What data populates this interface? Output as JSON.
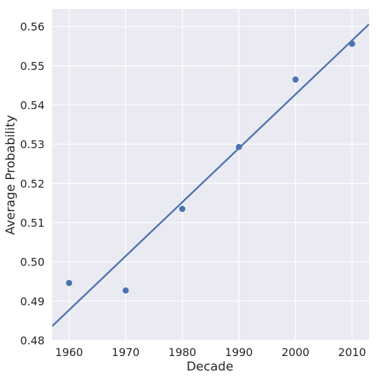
{
  "chart_data": {
    "type": "scatter",
    "title": "",
    "xlabel": "Decade",
    "ylabel": "Average Probability",
    "xlim": [
      1957,
      2013
    ],
    "ylim": [
      0.48,
      0.5645
    ],
    "xticks": [
      1960,
      1970,
      1980,
      1990,
      2000,
      2010
    ],
    "xtick_labels": [
      "1960",
      "1970",
      "1980",
      "1990",
      "2000",
      "2010"
    ],
    "yticks": [
      0.48,
      0.49,
      0.5,
      0.51,
      0.52,
      0.53,
      0.54,
      0.55,
      0.56
    ],
    "ytick_labels": [
      "0.48",
      "0.49",
      "0.50",
      "0.51",
      "0.52",
      "0.53",
      "0.54",
      "0.55",
      "0.56"
    ],
    "grid": true,
    "background": "#eaeaf2",
    "color": "#4c72b0",
    "points": [
      {
        "x": 1960,
        "y": 0.4946
      },
      {
        "x": 1970,
        "y": 0.4927
      },
      {
        "x": 1980,
        "y": 0.5135
      },
      {
        "x": 1990,
        "y": 0.5293
      },
      {
        "x": 2000,
        "y": 0.5465
      },
      {
        "x": 2010,
        "y": 0.5556
      }
    ],
    "fit_line": {
      "x": [
        1957,
        2013
      ],
      "y": [
        0.4836,
        0.5606
      ]
    }
  }
}
